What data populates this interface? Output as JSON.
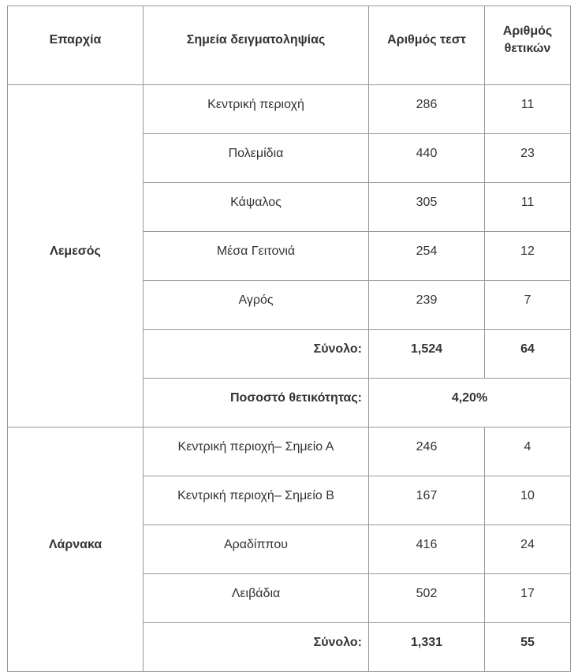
{
  "table": {
    "headers": [
      "Επαρχία",
      "Σημεία δειγματοληψίας",
      "Αριθμός τεστ",
      "Αριθμός θετικών"
    ],
    "groups": [
      {
        "province": "Λεμεσός",
        "rows": [
          [
            "Κεντρική περιοχή",
            "286",
            "11"
          ],
          [
            "Πολεμίδια",
            "440",
            "23"
          ],
          [
            "Κάψαλος",
            "305",
            "11"
          ],
          [
            "Μέσα Γειτονιά",
            "254",
            "12"
          ],
          [
            "Αγρός",
            "239",
            "7"
          ]
        ],
        "total_label": "Σύνολο:",
        "total_tests": "1,524",
        "total_positive": "64",
        "rate_label": "Ποσοστό θετικότητας:",
        "rate_value": "4,20%"
      },
      {
        "province": "Λάρνακα",
        "rows": [
          [
            "Κεντρική περιοχή– Σημείο Α",
            "246",
            "4"
          ],
          [
            "Κεντρική περιοχή– Σημείο Β",
            "167",
            "10"
          ],
          [
            "Αραδίππου",
            "416",
            "24"
          ],
          [
            "Λειβάδια",
            "502",
            "17"
          ]
        ],
        "total_label": "Σύνολο:",
        "total_tests": "1,331",
        "total_positive": "55"
      }
    ]
  }
}
